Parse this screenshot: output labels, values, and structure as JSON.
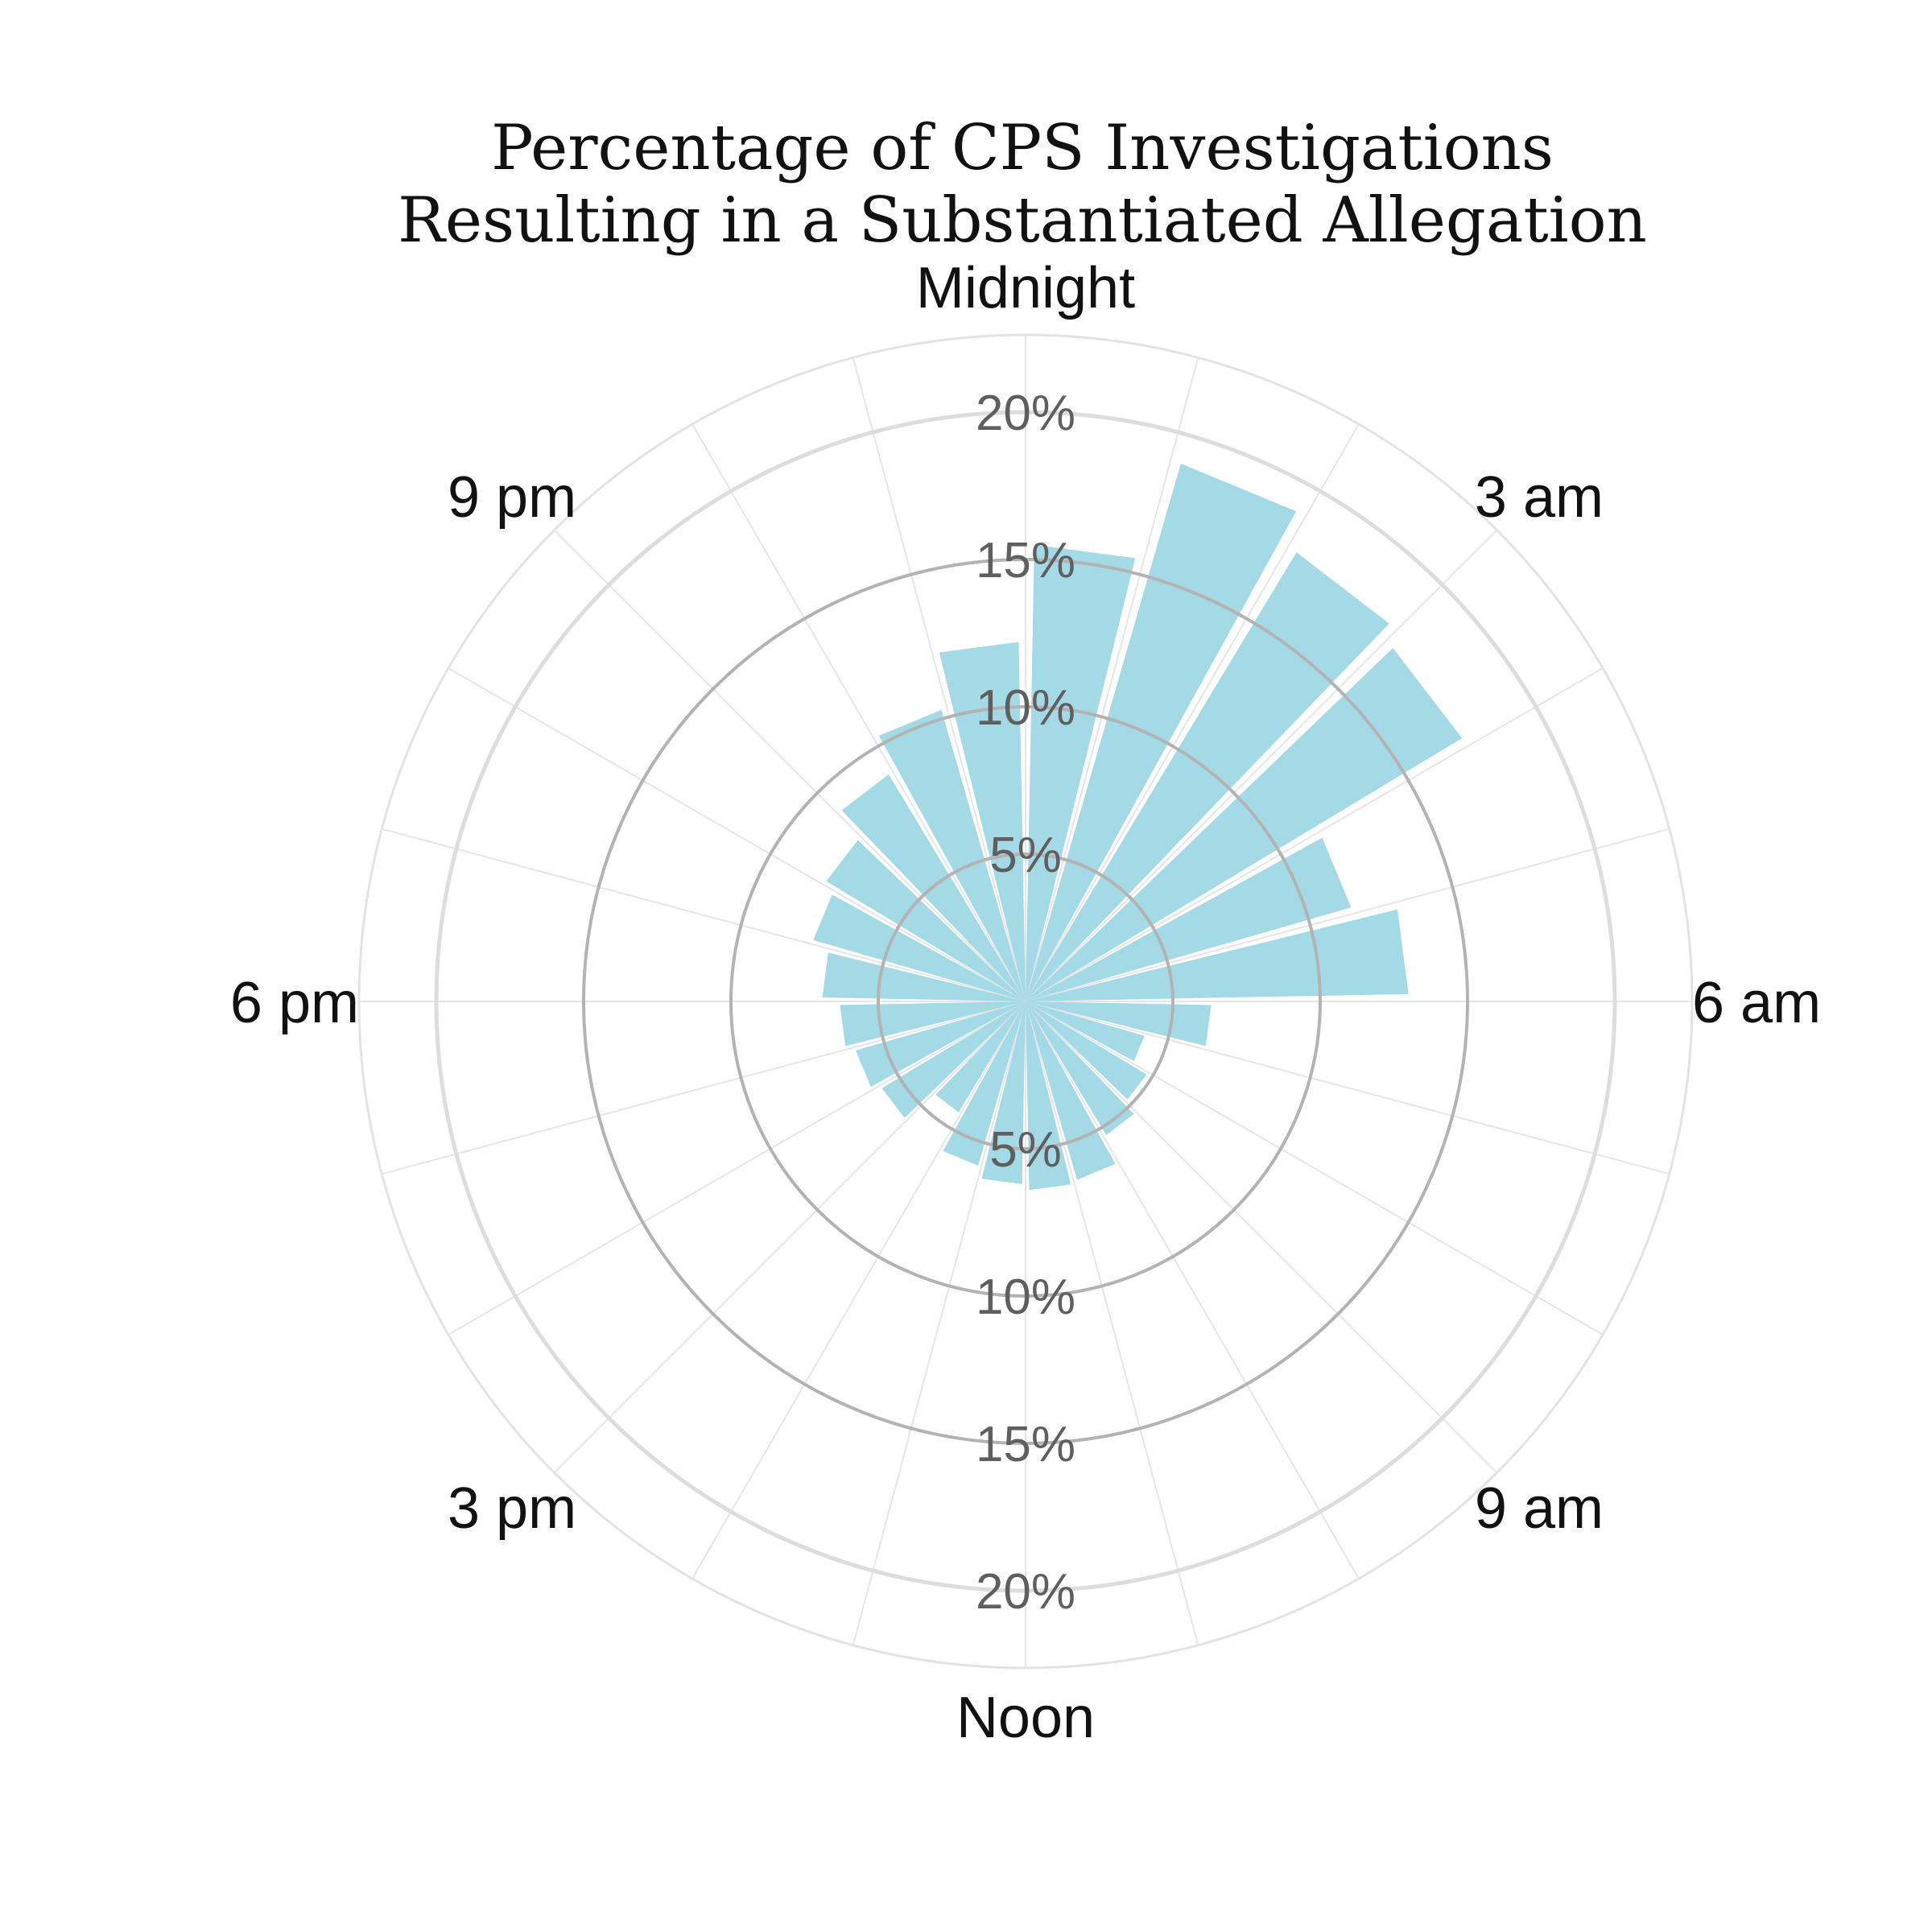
{
  "chart_data": {
    "type": "bar",
    "polar": true,
    "title": [
      "Percentage of CPS Investigations",
      "Resulting in a Substantiated Allegation"
    ],
    "xlabel": "",
    "ylabel": "",
    "ylim": [
      0,
      20
    ],
    "unit": "%",
    "grid": true,
    "bar_color": "#a4dae6",
    "categories": [
      "0",
      "1",
      "2",
      "3",
      "4",
      "5",
      "6",
      "7",
      "8",
      "9",
      "10",
      "11",
      "12",
      "13",
      "14",
      "15",
      "16",
      "17",
      "18",
      "19",
      "20",
      "21",
      "22",
      "23"
    ],
    "values": [
      15.5,
      19.0,
      17.8,
      17.3,
      11.5,
      13.0,
      6.3,
      4.2,
      4.8,
      5.3,
      6.3,
      6.4,
      6.2,
      5.8,
      4.4,
      5.7,
      6.0,
      6.3,
      6.9,
      7.5,
      7.9,
      9.0,
      10.3,
      12.2
    ],
    "hour_labels": [
      {
        "label": "Midnight",
        "hour": 0
      },
      {
        "label": "3 am",
        "hour": 3
      },
      {
        "label": "6 am",
        "hour": 6
      },
      {
        "label": "9 am",
        "hour": 9
      },
      {
        "label": "Noon",
        "hour": 12
      },
      {
        "label": "3 pm",
        "hour": 15
      },
      {
        "label": "6 pm",
        "hour": 18
      },
      {
        "label": "9 pm",
        "hour": 21
      }
    ],
    "ring_ticks": [
      5,
      10,
      15,
      20
    ],
    "ring_labels": [
      "5%",
      "10%",
      "15%",
      "20%"
    ]
  }
}
